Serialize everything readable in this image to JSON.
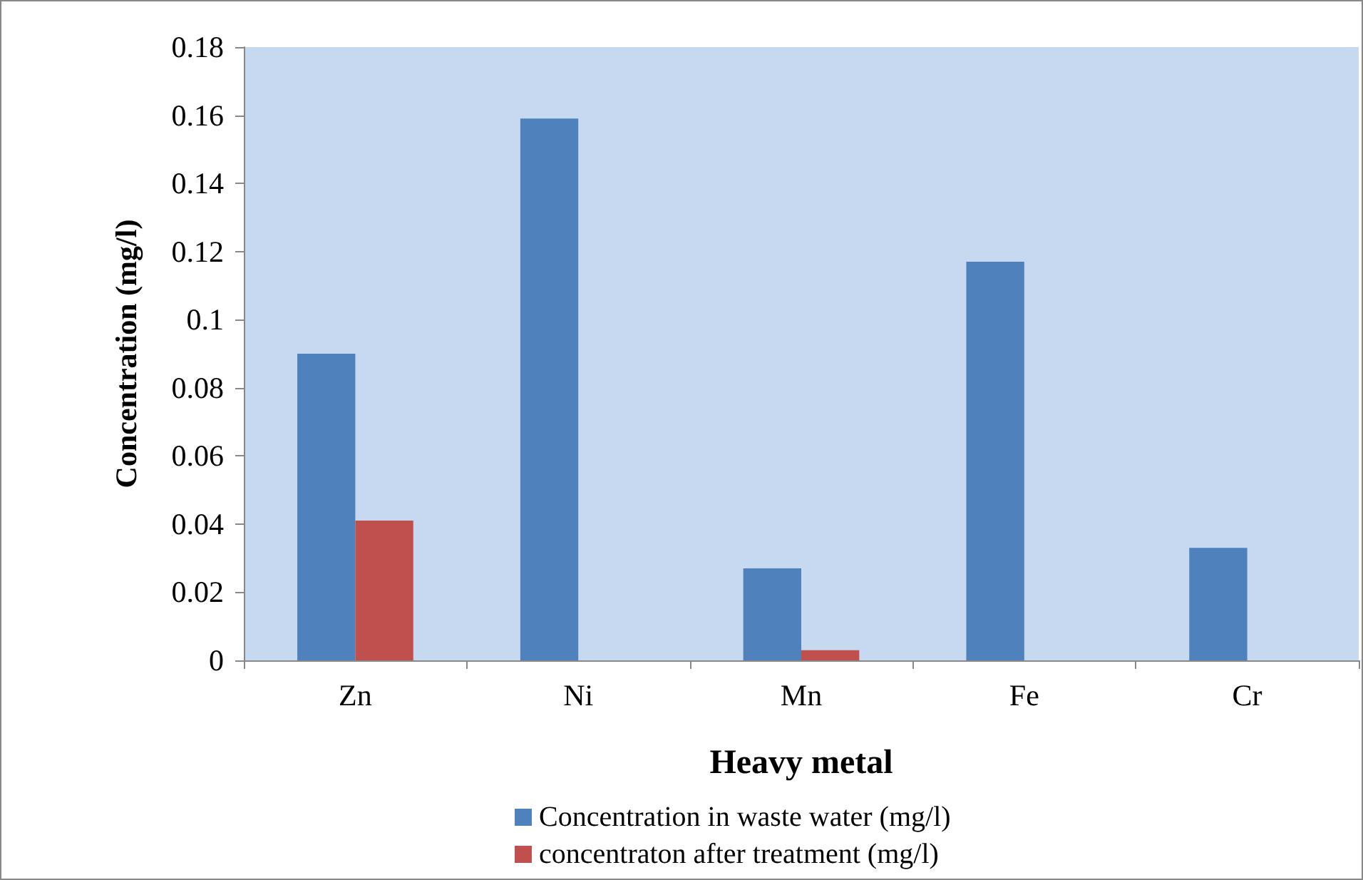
{
  "chart_data": {
    "type": "bar",
    "xlabel": "Heavy metal",
    "ylabel": "Concentration (mg/l)",
    "categories": [
      "Zn",
      "Ni",
      "Mn",
      "Fe",
      "Cr"
    ],
    "series": [
      {
        "name": "Concentration in waste water (mg/l)",
        "color": "#4f81bd",
        "values": [
          0.09,
          0.159,
          0.027,
          0.117,
          0.033
        ]
      },
      {
        "name": "concentraton after treatment (mg/l)",
        "color": "#c0504d",
        "values": [
          0.041,
          null,
          0.003,
          null,
          null
        ]
      }
    ],
    "ylim": [
      0,
      0.18
    ],
    "yticks": [
      0,
      0.02,
      0.04,
      0.06,
      0.08,
      {
        "value": 0.1,
        "label": "0.1"
      },
      0.12,
      0.14,
      0.16,
      0.18
    ],
    "grid": false,
    "legend": "bottom"
  }
}
